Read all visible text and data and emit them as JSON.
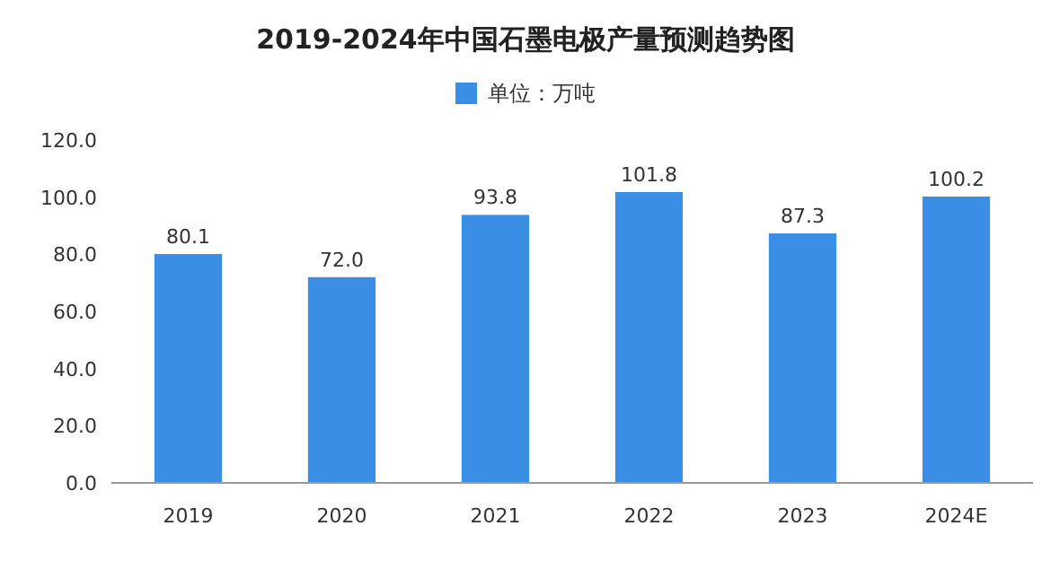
{
  "chart_data": {
    "type": "bar",
    "title": "2019-2024年中国石墨电极产量预测趋势图",
    "categories": [
      "2019",
      "2020",
      "2021",
      "2022",
      "2023",
      "2024E"
    ],
    "series": [
      {
        "name": "单位：万吨",
        "color": "#3a8ee6",
        "values": [
          80.1,
          72.0,
          93.8,
          101.8,
          87.3,
          100.2
        ],
        "value_labels": [
          "80.1",
          "72.0",
          "93.8",
          "101.8",
          "87.3",
          "100.2"
        ]
      }
    ],
    "ylim": [
      0,
      120
    ],
    "yticks": [
      {
        "value": 0,
        "label": "0.0"
      },
      {
        "value": 20,
        "label": "20.0"
      },
      {
        "value": 40,
        "label": "40.0"
      },
      {
        "value": 60,
        "label": "60.0"
      },
      {
        "value": 80,
        "label": "80.0"
      },
      {
        "value": 100,
        "label": "100.0"
      },
      {
        "value": 120,
        "label": "120.0"
      }
    ],
    "legend": "top",
    "grid": false
  }
}
